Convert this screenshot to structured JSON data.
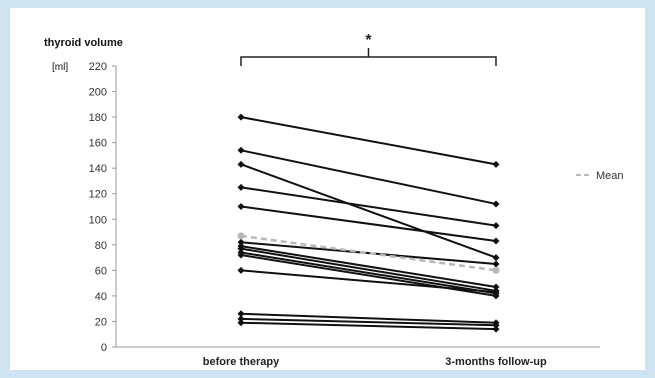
{
  "chart_data": {
    "type": "line",
    "ylabel": "thyroid volume",
    "yunit": "[ml]",
    "categories": [
      "before therapy",
      "3-months follow-up"
    ],
    "ylim": [
      0,
      220
    ],
    "yticks": [
      0,
      20,
      40,
      60,
      80,
      100,
      120,
      140,
      160,
      180,
      200,
      220
    ],
    "significance_marker": "*",
    "series": [
      {
        "values": [
          180,
          143
        ]
      },
      {
        "values": [
          154,
          112
        ]
      },
      {
        "values": [
          143,
          70
        ]
      },
      {
        "values": [
          125,
          95
        ]
      },
      {
        "values": [
          110,
          83
        ]
      },
      {
        "values": [
          82,
          65
        ]
      },
      {
        "values": [
          79,
          47
        ]
      },
      {
        "values": [
          77,
          44
        ]
      },
      {
        "values": [
          74,
          42
        ]
      },
      {
        "values": [
          72,
          40
        ]
      },
      {
        "values": [
          60,
          43
        ]
      },
      {
        "values": [
          26,
          19
        ]
      },
      {
        "values": [
          22,
          17
        ]
      },
      {
        "values": [
          19,
          14
        ]
      }
    ],
    "mean": {
      "name": "Mean",
      "values": [
        87,
        60
      ],
      "color": "#b8b8b8"
    },
    "series_color": "#111111",
    "legend_position": "right",
    "grid": false
  }
}
